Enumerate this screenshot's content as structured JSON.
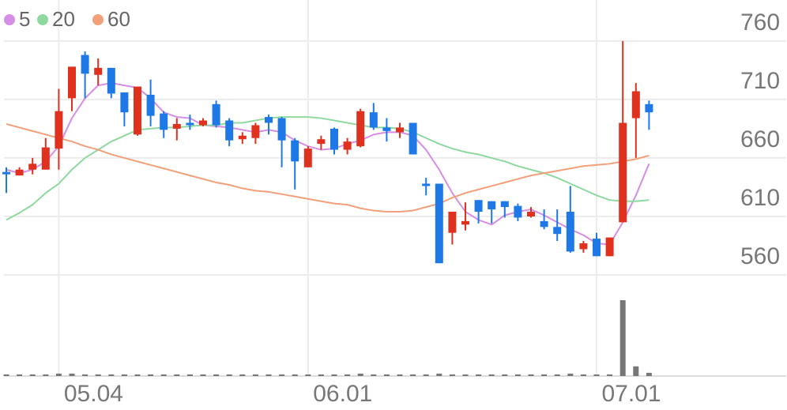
{
  "chart_data": {
    "type": "candlestick",
    "categories": [
      null,
      null,
      null,
      null,
      "05.04",
      null,
      null,
      null,
      null,
      null,
      null,
      null,
      null,
      null,
      null,
      null,
      null,
      null,
      null,
      null,
      null,
      null,
      null,
      "06.01",
      null,
      null,
      null,
      null,
      null,
      null,
      null,
      null,
      null,
      null,
      null,
      null,
      null,
      null,
      null,
      null,
      null,
      null,
      null,
      null,
      null,
      "07.01",
      null,
      null,
      null,
      null
    ],
    "open": [
      648,
      645,
      650,
      650,
      668,
      711,
      748,
      731,
      737,
      716,
      680,
      714,
      698,
      685,
      690,
      688,
      706,
      692,
      676,
      677,
      695,
      694,
      675,
      652,
      672,
      685,
      667,
      670,
      699,
      686,
      682,
      690,
      638,
      638,
      596,
      603,
      624,
      623,
      623,
      619,
      610,
      606,
      601,
      614,
      582,
      591,
      576,
      605,
      694,
      706
    ],
    "high": [
      652,
      652,
      660,
      677,
      719,
      738,
      751,
      745,
      737,
      716,
      721,
      727,
      700,
      694,
      697,
      694,
      709,
      694,
      682,
      690,
      697,
      695,
      677,
      670,
      679,
      686,
      677,
      702,
      707,
      694,
      690,
      690,
      643,
      638,
      614,
      622,
      624,
      623,
      623,
      621,
      618,
      616,
      616,
      636,
      589,
      596,
      592,
      760,
      724,
      709
    ],
    "low": [
      630,
      645,
      646,
      650,
      650,
      700,
      711,
      722,
      711,
      687,
      679,
      687,
      677,
      675,
      684,
      687,
      686,
      670,
      672,
      672,
      680,
      652,
      633,
      652,
      667,
      663,
      663,
      669,
      684,
      674,
      677,
      663,
      628,
      570,
      586,
      598,
      604,
      604,
      609,
      606,
      609,
      599,
      589,
      579,
      579,
      576,
      576,
      605,
      660,
      684
    ],
    "close": [
      646,
      650,
      655,
      669,
      700,
      738,
      732,
      737,
      715,
      699,
      721,
      696,
      684,
      689,
      688,
      692,
      688,
      675,
      679,
      688,
      690,
      675,
      657,
      668,
      676,
      667,
      674,
      700,
      686,
      683,
      686,
      663,
      636,
      570,
      614,
      606,
      614,
      616,
      618,
      609,
      614,
      601,
      595,
      580,
      587,
      576,
      592,
      690,
      717,
      699
    ],
    "series": [
      {
        "name": "5",
        "color": "#d58ee6",
        "values": [
          650,
          647,
          650,
          657,
          670,
          694,
          711,
          722,
          724,
          722,
          720,
          711,
          699,
          695,
          694,
          688,
          687,
          686,
          684,
          682,
          684,
          682,
          675,
          670,
          667,
          668,
          672,
          675,
          680,
          682,
          682,
          679,
          667,
          650,
          630,
          614,
          607,
          603,
          611,
          614,
          616,
          611,
          605,
          599,
          594,
          587,
          586,
          605,
          628,
          655
        ]
      },
      {
        "name": "20",
        "color": "#8fd9a0",
        "values": [
          607,
          613,
          620,
          630,
          638,
          650,
          660,
          667,
          674,
          679,
          684,
          685,
          686,
          686,
          687,
          688,
          688,
          690,
          690,
          692,
          694,
          695,
          695,
          695,
          694,
          692,
          690,
          688,
          686,
          686,
          685,
          682,
          677,
          672,
          668,
          665,
          663,
          660,
          657,
          653,
          650,
          647,
          643,
          638,
          633,
          628,
          624,
          623,
          623,
          624
        ]
      },
      {
        "name": "60",
        "color": "#f2a07a",
        "values": [
          689,
          686,
          683,
          680,
          677,
          674,
          670,
          667,
          663,
          660,
          657,
          654,
          651,
          648,
          645,
          642,
          639,
          637,
          634,
          632,
          631,
          629,
          627,
          625,
          623,
          621,
          620,
          617,
          615,
          614,
          614,
          615,
          618,
          621,
          626,
          630,
          633,
          636,
          639,
          642,
          645,
          647,
          649,
          651,
          653,
          654,
          655,
          657,
          659,
          662
        ]
      }
    ],
    "volume": [
      2,
      2,
      2,
      2,
      3,
      3,
      2,
      2,
      2,
      2,
      2,
      2,
      2,
      2,
      2,
      2,
      2,
      2,
      2,
      2,
      2,
      2,
      2,
      2,
      2,
      2,
      2,
      3,
      2,
      2,
      2,
      2,
      2,
      3,
      2,
      2,
      2,
      2,
      2,
      2,
      2,
      2,
      2,
      3,
      2,
      2,
      2,
      94,
      12,
      4
    ],
    "up_color": "#e0301e",
    "down_color": "#1e78e6",
    "volume_color": "#777777",
    "ylim": [
      560,
      795
    ],
    "yticks": [
      560,
      610,
      660,
      710,
      760
    ],
    "grid": true
  }
}
